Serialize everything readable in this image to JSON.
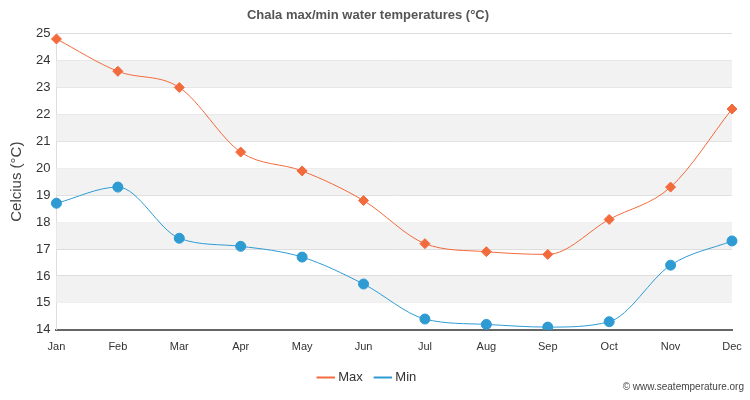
{
  "chart_data": {
    "type": "line",
    "title": "Chala max/min water temperatures (°C)",
    "y_label": "Celcius (°C)",
    "annotations": [
      "© www.seatemperature.org"
    ],
    "categories": [
      "Jan",
      "Feb",
      "Mar",
      "Apr",
      "May",
      "Jun",
      "Jul",
      "Aug",
      "Sep",
      "Oct",
      "Nov",
      "Dec"
    ],
    "series": [
      {
        "name": "Max",
        "color": "#f36a3c",
        "marker": "diamond",
        "line_style": "solid",
        "values": [
          24.8,
          23.6,
          23.0,
          20.6,
          19.9,
          18.8,
          17.2,
          16.9,
          16.8,
          18.1,
          19.3,
          22.2
        ]
      },
      {
        "name": "Min",
        "color": "#2f9bd3",
        "marker": "circle",
        "line_style": "solid",
        "values": [
          18.7,
          19.3,
          17.4,
          17.1,
          16.7,
          15.7,
          14.4,
          14.2,
          14.1,
          14.3,
          16.4,
          17.3
        ]
      }
    ],
    "ylim": [
      14,
      25
    ],
    "yticks": [
      14,
      15,
      16,
      17,
      18,
      19,
      20,
      21,
      22,
      23,
      24,
      25
    ],
    "grid": true,
    "legend": "bottom"
  }
}
